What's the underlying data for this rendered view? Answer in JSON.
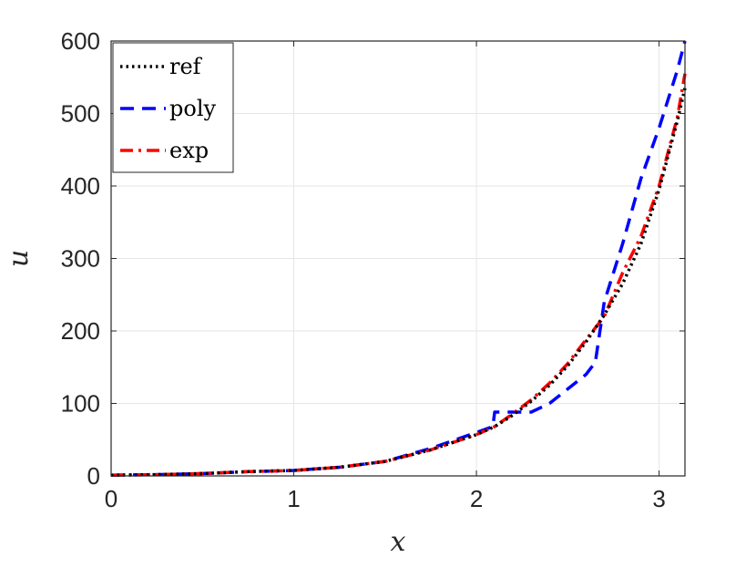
{
  "chart_data": {
    "type": "line",
    "title": "",
    "xlabel": "x",
    "ylabel": "u",
    "xlim": [
      0,
      3.14159
    ],
    "ylim": [
      0,
      600
    ],
    "xticks": [
      0,
      1,
      2,
      3
    ],
    "yticks": [
      0,
      100,
      200,
      300,
      400,
      500,
      600
    ],
    "grid": true,
    "legend_position": "top-left",
    "series": [
      {
        "name": "ref",
        "color": "#000000",
        "style": "dotted",
        "x": [
          0,
          0.25,
          0.5,
          0.75,
          1.0,
          1.25,
          1.5,
          1.75,
          2.0,
          2.1,
          2.2,
          2.3,
          2.4,
          2.5,
          2.6,
          2.7,
          2.8,
          2.9,
          3.0,
          3.1,
          3.14159
        ],
        "y": [
          1,
          1.8,
          3.3,
          5.9,
          7.5,
          12,
          20,
          36,
          57,
          68,
          84,
          103,
          125,
          152,
          185,
          222,
          265,
          320,
          395,
          490,
          535
        ]
      },
      {
        "name": "poly",
        "color": "#0000ff",
        "style": "dashed",
        "x": [
          0,
          0.25,
          0.5,
          0.75,
          1.0,
          1.25,
          1.5,
          1.75,
          2.0,
          2.09,
          2.1,
          2.2,
          2.3,
          2.4,
          2.5,
          2.6,
          2.63,
          2.65,
          2.7,
          2.8,
          2.9,
          3.0,
          3.1,
          3.14159
        ],
        "y": [
          1,
          1.8,
          3.3,
          5.9,
          7.5,
          12,
          20,
          38,
          60,
          68,
          88,
          88,
          88,
          100,
          120,
          140,
          150,
          155,
          240,
          320,
          410,
          480,
          560,
          600
        ]
      },
      {
        "name": "exp",
        "color": "#ff0000",
        "style": "dashdot",
        "x": [
          0,
          0.25,
          0.5,
          0.75,
          1.0,
          1.25,
          1.5,
          1.75,
          2.0,
          2.1,
          2.2,
          2.3,
          2.4,
          2.5,
          2.6,
          2.7,
          2.8,
          2.9,
          3.0,
          3.1,
          3.14159
        ],
        "y": [
          1,
          1.8,
          3.3,
          5.9,
          7.5,
          12,
          20,
          36,
          57,
          68,
          86,
          105,
          128,
          155,
          188,
          220,
          280,
          330,
          400,
          495,
          555
        ]
      }
    ]
  }
}
